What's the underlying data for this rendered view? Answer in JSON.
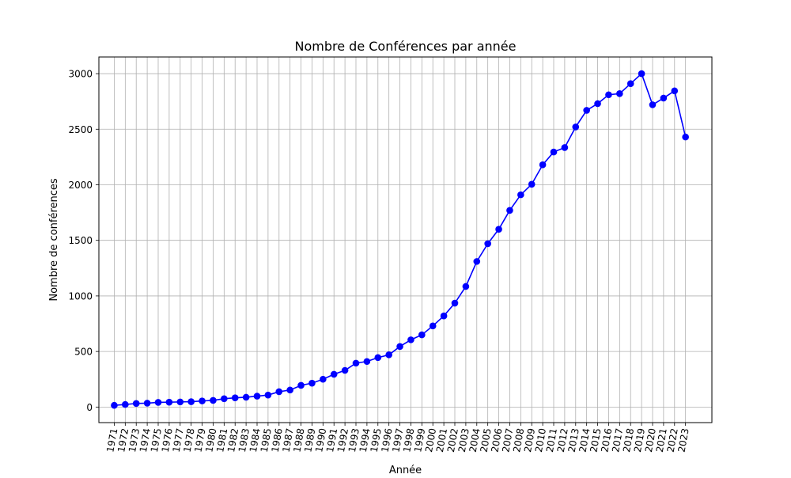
{
  "chart_data": {
    "type": "line",
    "title": "Nombre de Conférences par année",
    "xlabel": "Année",
    "ylabel": "Nombre de conférences",
    "x": [
      1971,
      1972,
      1973,
      1974,
      1975,
      1976,
      1977,
      1978,
      1979,
      1980,
      1981,
      1982,
      1983,
      1984,
      1985,
      1986,
      1987,
      1988,
      1989,
      1990,
      1991,
      1992,
      1993,
      1994,
      1995,
      1996,
      1997,
      1998,
      1999,
      2000,
      2001,
      2002,
      2003,
      2004,
      2005,
      2006,
      2007,
      2008,
      2009,
      2010,
      2011,
      2012,
      2013,
      2014,
      2015,
      2016,
      2017,
      2018,
      2019,
      2020,
      2021,
      2022,
      2023
    ],
    "series": [
      {
        "values": [
          15,
          23,
          32,
          35,
          42,
          44,
          46,
          48,
          55,
          60,
          75,
          83,
          88,
          98,
          108,
          138,
          153,
          195,
          215,
          250,
          295,
          330,
          395,
          410,
          445,
          470,
          545,
          605,
          650,
          730,
          820,
          935,
          1085,
          1310,
          1470,
          1600,
          1770,
          1910,
          2005,
          2180,
          2295,
          2335,
          2520,
          2670,
          2730,
          2810,
          2820,
          2910,
          3000,
          2720,
          2780,
          2845,
          2430
        ],
        "color": "#0000ff"
      }
    ],
    "yticks": [
      0,
      500,
      1000,
      1500,
      2000,
      2500,
      3000
    ],
    "ylim": [
      -140,
      3150
    ],
    "xlim": [
      1969.6,
      2025.4
    ],
    "grid": true,
    "legend": "none",
    "marker": "circle",
    "xtick_rotation": 80
  }
}
